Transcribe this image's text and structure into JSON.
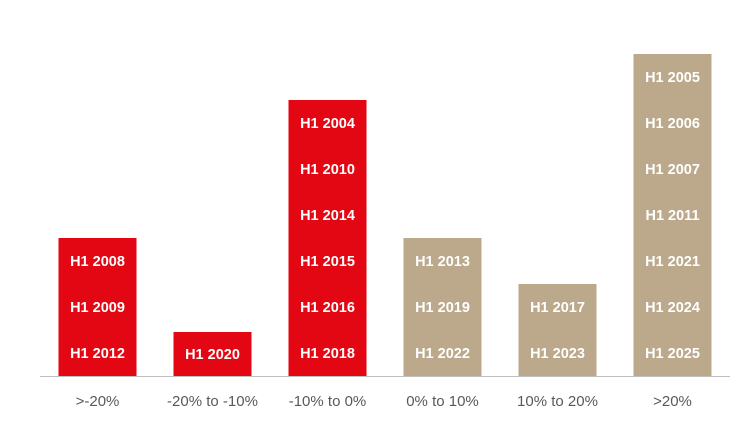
{
  "chart_data": {
    "type": "bar",
    "categories": [
      ">-20%",
      "-20% to -10%",
      "-10% to 0%",
      "0% to 10%",
      "10% to 20%",
      ">20%"
    ],
    "values": [
      3,
      1,
      6,
      3,
      2,
      7
    ],
    "labels": [
      [
        "H1 2008",
        "H1 2009",
        "H1 2012"
      ],
      [
        "H1 2020"
      ],
      [
        "H1 2004",
        "H1 2010",
        "H1 2014",
        "H1 2015",
        "H1 2016",
        "H1 2018"
      ],
      [
        "H1 2013",
        "H1 2019",
        "H1 2022"
      ],
      [
        "H1 2017",
        "H1 2023"
      ],
      [
        "H1 2005",
        "H1 2006",
        "H1 2007",
        "H1 2011",
        "H1 2021",
        "H1 2024",
        "H1 2025"
      ]
    ],
    "colors": [
      "#e30613",
      "#e30613",
      "#e30613",
      "#bca98c",
      "#bca98c",
      "#bca98c"
    ],
    "axis_color": "#bfbfbf",
    "title": "",
    "xlabel": "",
    "ylabel": "",
    "grid": false
  }
}
